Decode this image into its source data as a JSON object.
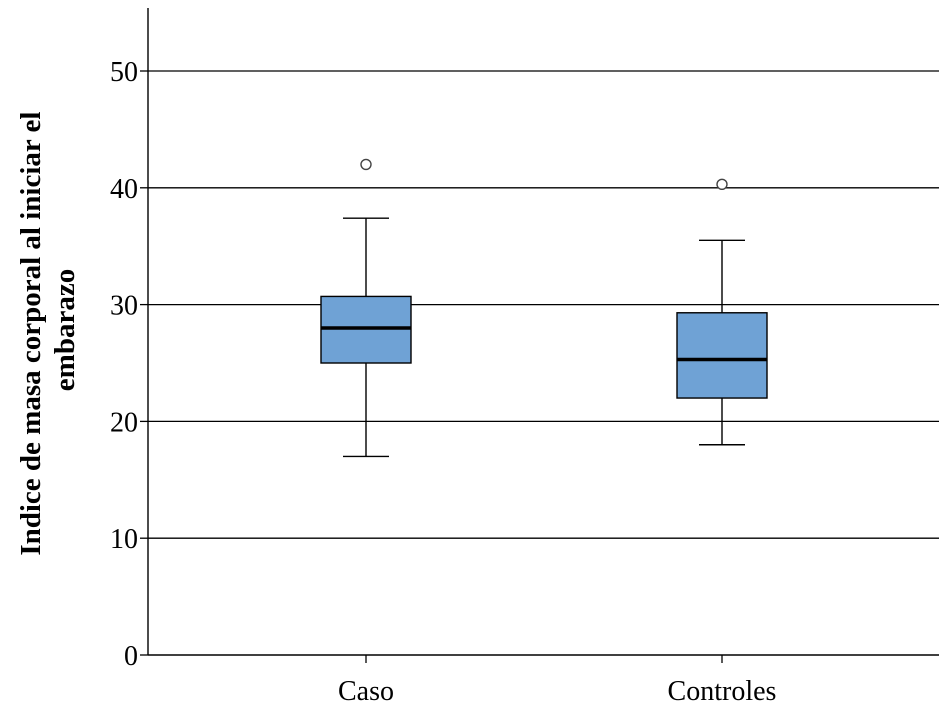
{
  "chart_data": {
    "type": "box",
    "title": "",
    "xlabel": "",
    "ylabel_lines": [
      "Indice de masa corporal al iniciar el",
      "embarazo"
    ],
    "ylim": [
      0,
      55
    ],
    "yticks": [
      0,
      10,
      20,
      30,
      40,
      50
    ],
    "grid": true,
    "categories": [
      "Caso",
      "Controles"
    ],
    "boxes": [
      {
        "category": "Caso",
        "whisker_low": 17,
        "q1": 25,
        "median": 28,
        "q3": 30.7,
        "whisker_high": 37.4,
        "outliers": [
          42
        ]
      },
      {
        "category": "Controles",
        "whisker_low": 18,
        "q1": 22,
        "median": 25.3,
        "q3": 29.3,
        "whisker_high": 35.5,
        "outliers": [
          40.3
        ]
      }
    ],
    "colors": {
      "box_fill": "#6fa2d5",
      "stroke": "#000000",
      "grid": "#000000"
    }
  }
}
